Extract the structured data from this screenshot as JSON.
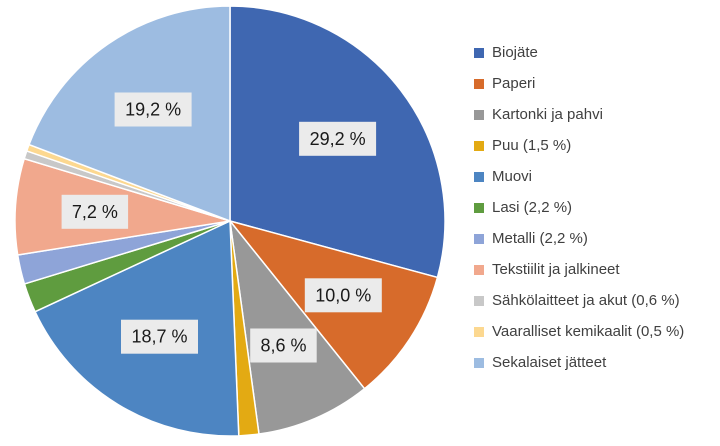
{
  "chart_data": {
    "type": "pie",
    "title": "",
    "unit": "%",
    "start_angle_deg": 0,
    "direction": "clockwise",
    "slices": [
      {
        "name": "Biojäte",
        "value": 29.2,
        "label": "29,2 %",
        "color": "#3F67B1"
      },
      {
        "name": "Paperi",
        "value": 10.0,
        "label": "10,0 %",
        "color": "#D76B2B"
      },
      {
        "name": "Kartonki ja pahvi",
        "value": 8.6,
        "label": "8,6 %",
        "color": "#989898"
      },
      {
        "name": "Puu (1,5 %)",
        "value": 1.5,
        "label": "",
        "color": "#E3AA13"
      },
      {
        "name": "Muovi",
        "value": 18.7,
        "label": "18,7 %",
        "color": "#4D85C2"
      },
      {
        "name": "Lasi (2,2 %)",
        "value": 2.2,
        "label": "",
        "color": "#5F9C3F"
      },
      {
        "name": "Metalli (2,2 %)",
        "value": 2.2,
        "label": "",
        "color": "#8EA4D8"
      },
      {
        "name": "Tekstiilit ja jalkineet",
        "value": 7.2,
        "label": "7,2 %",
        "color": "#F1A88D"
      },
      {
        "name": "Sähkölaitteet ja akut (0,6 %)",
        "value": 0.6,
        "label": "",
        "color": "#C8C8C8"
      },
      {
        "name": "Vaaralliset kemikaalit (0,5 %)",
        "value": 0.5,
        "label": "",
        "color": "#FCD890"
      },
      {
        "name": "Sekalaiset jätteet",
        "value": 19.2,
        "label": "19,2 %",
        "color": "#9DBCE1"
      }
    ],
    "legend_position": "right",
    "data_label_background": "#EBEBEB"
  }
}
